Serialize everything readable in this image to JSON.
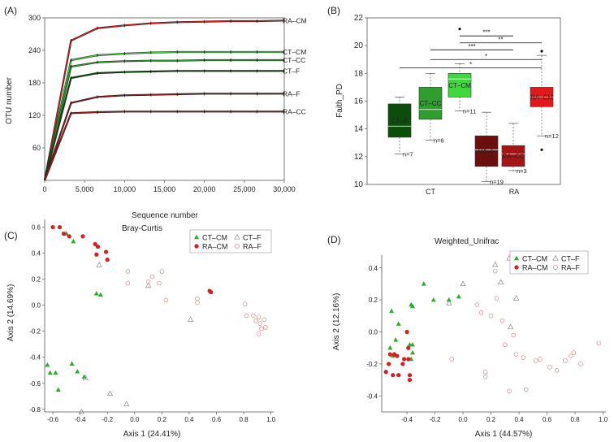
{
  "chart_data": [
    {
      "panel": "(A)",
      "type": "line",
      "xlabel": "Sequence number",
      "ylabel": "OTU number",
      "xlim": [
        0,
        30000
      ],
      "ylim": [
        0,
        300
      ],
      "x_ticks": [
        "0",
        "5,000",
        "10,000",
        "15,000",
        "20,000",
        "25,000",
        "30,000"
      ],
      "y_ticks": [
        "60",
        "120",
        "180",
        "240",
        "300"
      ],
      "series": [
        {
          "name": "RA–CM",
          "color": "#e0191a",
          "x": [
            0,
            3300,
            6600,
            10000,
            13300,
            16600,
            20000,
            23300,
            26600,
            30000
          ],
          "y": [
            0,
            258,
            281,
            286,
            290,
            292,
            293,
            294,
            294,
            295
          ]
        },
        {
          "name": "CT–CM",
          "color": "#3fd83f",
          "x": [
            0,
            3300,
            6600,
            10000,
            13300,
            16600,
            20000,
            23300,
            26600,
            30000
          ],
          "y": [
            0,
            222,
            231,
            234,
            236,
            237,
            237,
            237,
            237,
            237
          ]
        },
        {
          "name": "CT–CC",
          "color": "#2e9e2e",
          "x": [
            0,
            3300,
            6600,
            10000,
            13300,
            16600,
            20000,
            23300,
            26600,
            30000
          ],
          "y": [
            0,
            210,
            218,
            220,
            221,
            221,
            222,
            222,
            222,
            222
          ]
        },
        {
          "name": "CT–F",
          "color": "#0b4d0b",
          "x": [
            0,
            3300,
            6600,
            10000,
            13300,
            16600,
            20000,
            23300,
            26600,
            30000
          ],
          "y": [
            0,
            189,
            198,
            200,
            201,
            202,
            202,
            202,
            202,
            202
          ]
        },
        {
          "name": "RA–F",
          "color": "#8b1a1a",
          "x": [
            0,
            3300,
            6600,
            10000,
            13300,
            16600,
            20000,
            23300,
            26600,
            30000
          ],
          "y": [
            0,
            143,
            154,
            157,
            158,
            159,
            160,
            160,
            160,
            160
          ]
        },
        {
          "name": "RA–CC",
          "color": "#a51515",
          "x": [
            0,
            3300,
            6600,
            10000,
            13300,
            16600,
            20000,
            23300,
            26600,
            30000
          ],
          "y": [
            0,
            124,
            126,
            127,
            127,
            127,
            127,
            127,
            127,
            127
          ]
        }
      ]
    },
    {
      "panel": "(B)",
      "type": "box",
      "ylabel": "Faith_PD",
      "ylim": [
        10,
        22
      ],
      "y_ticks": [
        "10",
        "12",
        "14",
        "16",
        "18",
        "20",
        "22"
      ],
      "categories": [
        "CT",
        "RA"
      ],
      "boxes": [
        {
          "name": "CT–F",
          "color": "#0b4d0b",
          "n": "n=7",
          "min": 12.2,
          "q1": 13.4,
          "median": 14.2,
          "q3": 15.8,
          "max": 16.3,
          "outliers": []
        },
        {
          "name": "CT–CC",
          "color": "#2e9e2e",
          "n": "n=6",
          "min": 13.2,
          "q1": 14.7,
          "median": 15.4,
          "q3": 17.0,
          "max": 18.0,
          "outliers": []
        },
        {
          "name": "CT–CM",
          "color": "#3fd83f",
          "n": "n=11",
          "min": 15.3,
          "q1": 16.3,
          "median": 17.6,
          "q3": 18.0,
          "max": 18.7,
          "outliers": [
            21.2
          ]
        },
        {
          "name": "RA–F",
          "color": "#6b0e0e",
          "n": "n=19",
          "min": 10.2,
          "q1": 11.3,
          "median": 12.5,
          "q3": 13.5,
          "max": 15.2,
          "outliers": []
        },
        {
          "name": "RA–CC",
          "color": "#a51515",
          "n": "n=3",
          "min": 11.0,
          "q1": 11.3,
          "median": 12.2,
          "q3": 12.8,
          "max": 14.4,
          "outliers": []
        },
        {
          "name": "RA–CM",
          "color": "#e0191a",
          "n": "n=12",
          "min": 13.5,
          "q1": 15.6,
          "median": 16.3,
          "q3": 17.0,
          "max": 19.3,
          "outliers": [
            19.6,
            12.5
          ]
        }
      ],
      "significance": [
        {
          "label": "***",
          "from": 2,
          "to": 4,
          "y": 20.7
        },
        {
          "label": "**",
          "from": 2,
          "to": 5,
          "y": 20.2
        },
        {
          "label": "***",
          "from": 1,
          "to": 4,
          "y": 19.7
        },
        {
          "label": "*",
          "from": 1,
          "to": 5,
          "y": 19.0
        },
        {
          "label": "*",
          "from": 0,
          "to": 5,
          "y": 18.4
        }
      ]
    },
    {
      "panel": "(C)",
      "type": "scatter",
      "title": "Bray-Curtis",
      "xlabel": "Axis 1 (24.41%)",
      "ylabel": "Axis 2 (14.69%)",
      "xlim": [
        -0.66,
        1.02
      ],
      "ylim": [
        -0.82,
        0.66
      ],
      "x_ticks": [
        -0.6,
        -0.4,
        -0.2,
        0.0,
        0.2,
        0.4,
        0.6,
        0.8,
        1.0
      ],
      "x_tick_labels": [
        "-0.6",
        "-0.4",
        "-0.2",
        "0.0",
        "0.2",
        "0.4",
        "0.6",
        "0.8",
        "1.0"
      ],
      "y_ticks": [
        -0.8,
        -0.6,
        -0.4,
        -0.2,
        0.0,
        0.2,
        0.4,
        0.6
      ],
      "y_tick_labels": [
        "-0.8",
        "-0.6",
        "-0.4",
        "-0.2",
        "0.0",
        "0.2",
        "0.4",
        "0.6"
      ],
      "legend": [
        "CT–CM",
        "CT–F",
        "RA–CM",
        "RA–F"
      ],
      "series": [
        {
          "name": "CT–CM",
          "marker": "triangle-filled",
          "color": "#2eaa2e",
          "points": [
            [
              -0.5,
              0.55
            ],
            [
              -0.45,
              0.49
            ],
            [
              -0.28,
              0.09
            ],
            [
              -0.25,
              0.08
            ],
            [
              -0.64,
              -0.46
            ],
            [
              -0.62,
              -0.52
            ],
            [
              -0.58,
              -0.52
            ],
            [
              -0.46,
              -0.45
            ],
            [
              -0.42,
              -0.51
            ],
            [
              -0.56,
              -0.65
            ],
            [
              -0.37,
              -0.55
            ]
          ]
        },
        {
          "name": "CT–F",
          "marker": "triangle-open",
          "color": "#888888",
          "points": [
            [
              -0.26,
              0.31
            ],
            [
              -0.36,
              -0.56
            ],
            [
              -0.18,
              -0.68
            ],
            [
              -0.06,
              -0.76
            ],
            [
              0.1,
              0.15
            ],
            [
              0.41,
              -0.11
            ],
            [
              -0.39,
              -0.82
            ]
          ]
        },
        {
          "name": "RA–CM",
          "marker": "circle-filled",
          "color": "#d42020",
          "points": [
            [
              -0.6,
              0.6
            ],
            [
              -0.55,
              0.6
            ],
            [
              -0.52,
              0.55
            ],
            [
              -0.48,
              0.53
            ],
            [
              -0.38,
              0.53
            ],
            [
              -0.29,
              0.47
            ],
            [
              -0.27,
              0.45
            ],
            [
              -0.28,
              0.39
            ],
            [
              -0.21,
              0.41
            ],
            [
              -0.2,
              0.35
            ],
            [
              0.55,
              0.11
            ],
            [
              0.56,
              0.1
            ]
          ]
        },
        {
          "name": "RA–F",
          "marker": "circle-open",
          "color": "#cc8888",
          "points": [
            [
              -0.05,
              0.26
            ],
            [
              -0.05,
              0.17
            ],
            [
              0.1,
              0.18
            ],
            [
              0.13,
              0.22
            ],
            [
              0.2,
              0.26
            ],
            [
              0.18,
              0.17
            ],
            [
              0.23,
              0.04
            ],
            [
              0.46,
              0.05
            ],
            [
              0.46,
              0.02
            ],
            [
              0.81,
              0.01
            ],
            [
              0.82,
              -0.08
            ],
            [
              0.87,
              -0.08
            ],
            [
              0.89,
              -0.12
            ],
            [
              0.91,
              -0.09
            ],
            [
              0.92,
              -0.14
            ],
            [
              0.93,
              -0.18
            ],
            [
              0.96,
              -0.17
            ],
            [
              0.91,
              -0.22
            ],
            [
              0.95,
              -0.11
            ]
          ]
        }
      ]
    },
    {
      "panel": "(D)",
      "type": "scatter",
      "title": "Weighted_Unifrac",
      "xlabel": "Axis 1 (44.57%)",
      "ylabel": "Axis 2 (12.16%)",
      "xlim": [
        -0.58,
        1.02
      ],
      "ylim": [
        -0.5,
        0.48
      ],
      "x_ticks": [
        -0.4,
        -0.2,
        0.0,
        0.2,
        0.4,
        0.6,
        0.8,
        1.0
      ],
      "x_tick_labels": [
        "-0.4",
        "-0.2",
        "0.0",
        "0.2",
        "0.4",
        "0.6",
        "0.8",
        "1.0"
      ],
      "y_ticks": [
        -0.4,
        -0.2,
        0.0,
        0.2,
        0.4
      ],
      "y_tick_labels": [
        "-0.4",
        "-0.2",
        "0.0",
        "0.2",
        "0.4"
      ],
      "legend": [
        "CT–CM",
        "CT–F",
        "RA–CM",
        "RA–F"
      ],
      "series": [
        {
          "name": "CT–CM",
          "marker": "triangle-filled",
          "color": "#2eaa2e",
          "points": [
            [
              -0.28,
              0.3
            ],
            [
              -0.21,
              0.2
            ],
            [
              -0.1,
              0.2
            ],
            [
              -0.03,
              0.22
            ],
            [
              -0.37,
              0.17
            ],
            [
              -0.36,
              0.16
            ],
            [
              -0.51,
              0.13
            ],
            [
              -0.46,
              0.05
            ],
            [
              -0.48,
              -0.05
            ],
            [
              -0.38,
              -0.08
            ],
            [
              -0.36,
              -0.08
            ],
            [
              -0.52,
              -0.1
            ],
            [
              -0.36,
              -0.13
            ],
            [
              -0.5,
              -0.15
            ],
            [
              -0.37,
              -0.17
            ],
            [
              -0.49,
              -0.14
            ]
          ]
        },
        {
          "name": "CT–F",
          "marker": "triangle-open",
          "color": "#888888",
          "points": [
            [
              -0.1,
              0.18
            ],
            [
              0.0,
              0.3
            ],
            [
              0.23,
              0.42
            ],
            [
              0.33,
              0.46
            ],
            [
              0.27,
              0.31
            ],
            [
              0.34,
              0.03
            ],
            [
              0.78,
              0.4
            ],
            [
              0.38,
              0.21
            ]
          ]
        },
        {
          "name": "RA–CM",
          "marker": "circle-filled",
          "color": "#d42020",
          "points": [
            [
              -0.4,
              0.0
            ],
            [
              -0.49,
              -0.14
            ],
            [
              -0.47,
              -0.15
            ],
            [
              -0.52,
              -0.14
            ],
            [
              -0.42,
              -0.17
            ],
            [
              -0.43,
              -0.2
            ],
            [
              -0.39,
              -0.1
            ],
            [
              -0.39,
              -0.17
            ],
            [
              -0.38,
              -0.27
            ],
            [
              -0.38,
              -0.3
            ],
            [
              -0.53,
              -0.2
            ],
            [
              -0.55,
              -0.25
            ],
            [
              -0.46,
              -0.27
            ],
            [
              -0.5,
              -0.27
            ]
          ]
        },
        {
          "name": "RA–F",
          "marker": "circle-open",
          "color": "#cc8888",
          "points": [
            [
              -0.08,
              -0.17
            ],
            [
              0.1,
              0.17
            ],
            [
              0.13,
              0.12
            ],
            [
              0.16,
              -0.25
            ],
            [
              0.16,
              -0.28
            ],
            [
              0.2,
              0.1
            ],
            [
              0.23,
              0.38
            ],
            [
              0.24,
              0.21
            ],
            [
              0.28,
              0.07
            ],
            [
              0.3,
              -0.08
            ],
            [
              0.36,
              -0.02
            ],
            [
              0.38,
              -0.14
            ],
            [
              0.43,
              -0.16
            ],
            [
              0.52,
              -0.18
            ],
            [
              0.55,
              -0.17
            ],
            [
              0.62,
              -0.22
            ],
            [
              0.67,
              -0.24
            ],
            [
              0.73,
              -0.18
            ],
            [
              0.79,
              -0.13
            ],
            [
              0.84,
              -0.2
            ],
            [
              0.97,
              -0.07
            ],
            [
              0.33,
              -0.37
            ],
            [
              0.45,
              -0.36
            ],
            [
              0.77,
              -0.15
            ]
          ]
        }
      ]
    }
  ]
}
